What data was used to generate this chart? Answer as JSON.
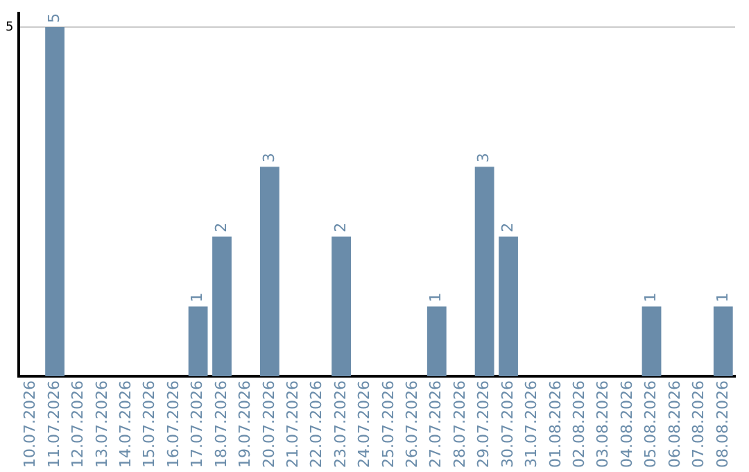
{
  "chart_data": {
    "type": "bar",
    "categories": [
      "10.07.2026",
      "11.07.2026",
      "12.07.2026",
      "13.07.2026",
      "14.07.2026",
      "15.07.2026",
      "16.07.2026",
      "17.07.2026",
      "18.07.2026",
      "19.07.2026",
      "20.07.2026",
      "21.07.2026",
      "22.07.2026",
      "23.07.2026",
      "24.07.2026",
      "25.07.2026",
      "26.07.2026",
      "27.07.2026",
      "28.07.2026",
      "29.07.2026",
      "30.07.2026",
      "31.07.2026",
      "01.08.2026",
      "02.08.2026",
      "03.08.2026",
      "04.08.2026",
      "05.08.2026",
      "06.08.2026",
      "07.08.2026",
      "08.08.2026"
    ],
    "values": [
      0,
      5,
      0,
      0,
      0,
      0,
      0,
      1,
      2,
      0,
      3,
      0,
      0,
      2,
      0,
      0,
      0,
      1,
      0,
      3,
      2,
      0,
      0,
      0,
      0,
      0,
      1,
      0,
      0,
      1
    ],
    "value_labels": [
      null,
      "5",
      null,
      null,
      null,
      null,
      null,
      "1",
      "2",
      null,
      "3",
      null,
      null,
      "2",
      null,
      null,
      null,
      "1",
      null,
      "3",
      "2",
      null,
      null,
      null,
      null,
      null,
      "1",
      null,
      null,
      "1"
    ],
    "color": "#6a8caa",
    "ylim": [
      0,
      5.2
    ],
    "yticks": [
      5
    ],
    "grid": "y",
    "legend": false
  }
}
